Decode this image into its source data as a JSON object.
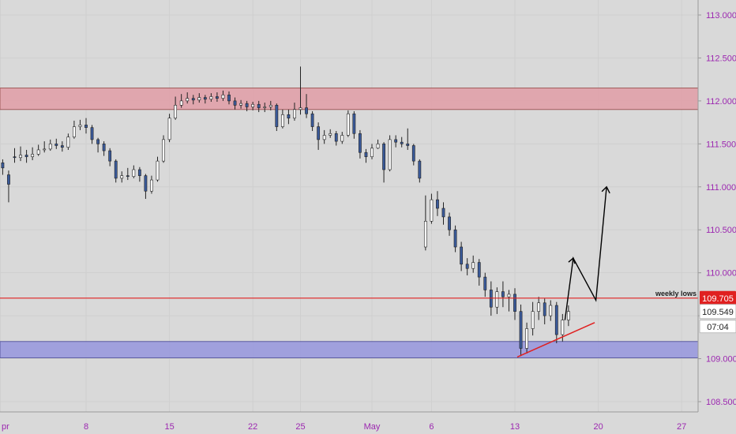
{
  "chart_data": {
    "type": "candlestick",
    "y_axis": {
      "ticks": [
        "113.000",
        "112.500",
        "112.000",
        "111.500",
        "111.000",
        "110.500",
        "110.000",
        "109.500",
        "109.000",
        "108.500"
      ],
      "tick_values": [
        113.0,
        112.5,
        112.0,
        111.5,
        111.0,
        110.5,
        110.0,
        109.5,
        109.0,
        108.5
      ],
      "range": [
        108.3,
        113.2
      ],
      "position": "right"
    },
    "x_axis": {
      "labels": [
        "pr",
        "8",
        "15",
        "22",
        "25",
        "May",
        "6",
        "13",
        "20",
        "27"
      ],
      "index": [
        -0.2,
        7,
        14,
        21,
        25,
        31,
        36,
        43,
        50,
        57
      ],
      "range": [
        0,
        60
      ]
    },
    "zones": [
      {
        "name": "resistance-zone",
        "low": 111.9,
        "high": 112.15,
        "color": "#e0a0a8",
        "border": "#a05a5a"
      },
      {
        "name": "support-zone",
        "low": 109.01,
        "high": 109.2,
        "color": "#9999dd",
        "border": "#5a5aa0"
      }
    ],
    "lines": [
      {
        "name": "weekly-lows",
        "value": 109.705,
        "label": "weekly lows",
        "color": "#e02020"
      }
    ],
    "price_tags": [
      {
        "name": "weekly-lows-tag",
        "text": "109.705",
        "bg": "#e02020",
        "fg": "#ffffff",
        "value": 109.705
      },
      {
        "name": "current-price-tag",
        "text": "109.549",
        "bg": "#ffffff",
        "fg": "#222222",
        "value": 109.549
      },
      {
        "name": "countdown-tag",
        "text": "07:04",
        "bg": "#ffffff",
        "fg": "#222222",
        "value": 109.39
      }
    ],
    "trendline": {
      "from": {
        "x": 43.2,
        "y": 109.02
      },
      "to": {
        "x": 49.7,
        "y": 109.42
      },
      "color": "#e02020"
    },
    "projection": {
      "points": [
        [
          47.2,
          109.45
        ],
        [
          47.9,
          110.17
        ],
        [
          49.8,
          109.68
        ],
        [
          50.7,
          111.0
        ]
      ],
      "color": "#000000"
    },
    "candles": [
      [
        0,
        111.28,
        111.22,
        111.32,
        111.14
      ],
      [
        0.5,
        111.14,
        111.03,
        111.19,
        110.82
      ],
      [
        1,
        111.35,
        111.34,
        111.45,
        111.28
      ],
      [
        1.5,
        111.34,
        111.37,
        111.47,
        111.3
      ],
      [
        2,
        111.37,
        111.35,
        111.43,
        111.28
      ],
      [
        2.5,
        111.35,
        111.38,
        111.46,
        111.31
      ],
      [
        3,
        111.38,
        111.43,
        111.49,
        111.36
      ],
      [
        3.5,
        111.43,
        111.44,
        111.53,
        111.4
      ],
      [
        4,
        111.44,
        111.5,
        111.55,
        111.42
      ],
      [
        4.5,
        111.5,
        111.48,
        111.56,
        111.44
      ],
      [
        5,
        111.48,
        111.46,
        111.53,
        111.41
      ],
      [
        5.5,
        111.46,
        111.58,
        111.62,
        111.43
      ],
      [
        6,
        111.58,
        111.7,
        111.77,
        111.56
      ],
      [
        6.5,
        111.7,
        111.72,
        111.78,
        111.66
      ],
      [
        7,
        111.72,
        111.69,
        111.8,
        111.62
      ],
      [
        7.5,
        111.69,
        111.55,
        111.72,
        111.5
      ],
      [
        8,
        111.55,
        111.5,
        111.57,
        111.4
      ],
      [
        8.5,
        111.5,
        111.42,
        111.53,
        111.36
      ],
      [
        9,
        111.42,
        111.3,
        111.45,
        111.24
      ],
      [
        9.5,
        111.3,
        111.1,
        111.32,
        111.05
      ],
      [
        10,
        111.1,
        111.13,
        111.18,
        111.05
      ],
      [
        10.5,
        111.13,
        111.12,
        111.22,
        111.08
      ],
      [
        11,
        111.12,
        111.2,
        111.25,
        111.1
      ],
      [
        11.5,
        111.2,
        111.13,
        111.23,
        111.06
      ],
      [
        12,
        111.13,
        110.95,
        111.15,
        110.86
      ],
      [
        12.5,
        110.95,
        111.08,
        111.13,
        110.92
      ],
      [
        13,
        111.08,
        111.3,
        111.35,
        111.06
      ],
      [
        13.5,
        111.3,
        111.55,
        111.6,
        111.28
      ],
      [
        14,
        111.55,
        111.8,
        111.85,
        111.52
      ],
      [
        14.5,
        111.8,
        111.95,
        112.05,
        111.78
      ],
      [
        15,
        111.95,
        112.0,
        112.08,
        111.92
      ],
      [
        15.5,
        112.0,
        112.03,
        112.1,
        111.97
      ],
      [
        16,
        112.03,
        112.01,
        112.07,
        111.96
      ],
      [
        16.5,
        112.01,
        112.04,
        112.09,
        111.98
      ],
      [
        17,
        112.04,
        112.02,
        112.07,
        111.97
      ],
      [
        17.5,
        112.02,
        112.05,
        112.09,
        111.99
      ],
      [
        18,
        112.05,
        112.03,
        112.1,
        111.99
      ],
      [
        18.5,
        112.03,
        112.07,
        112.12,
        112.0
      ],
      [
        19,
        112.07,
        112.0,
        112.11,
        111.96
      ],
      [
        19.5,
        112.0,
        111.95,
        112.04,
        111.9
      ],
      [
        20,
        111.95,
        111.97,
        112.01,
        111.91
      ],
      [
        20.5,
        111.97,
        111.93,
        112.0,
        111.88
      ],
      [
        21,
        111.93,
        111.96,
        111.99,
        111.89
      ],
      [
        21.5,
        111.96,
        111.92,
        112.0,
        111.87
      ],
      [
        22,
        111.92,
        111.93,
        111.98,
        111.87
      ],
      [
        22.5,
        111.93,
        111.95,
        112.0,
        111.89
      ],
      [
        23,
        111.95,
        111.7,
        111.97,
        111.65
      ],
      [
        23.5,
        111.7,
        111.84,
        111.9,
        111.68
      ],
      [
        24,
        111.84,
        111.8,
        111.9,
        111.73
      ],
      [
        24.5,
        111.8,
        111.9,
        111.98,
        111.77
      ],
      [
        25,
        111.9,
        111.92,
        112.4,
        111.84
      ],
      [
        25.5,
        111.92,
        111.85,
        112.08,
        111.8
      ],
      [
        26,
        111.85,
        111.7,
        111.88,
        111.65
      ],
      [
        26.5,
        111.7,
        111.55,
        111.75,
        111.43
      ],
      [
        27,
        111.55,
        111.6,
        111.66,
        111.5
      ],
      [
        27.5,
        111.6,
        111.62,
        111.67,
        111.57
      ],
      [
        28,
        111.62,
        111.53,
        111.65,
        111.48
      ],
      [
        28.5,
        111.53,
        111.6,
        111.64,
        111.5
      ],
      [
        29,
        111.6,
        111.85,
        111.89,
        111.58
      ],
      [
        29.5,
        111.85,
        111.62,
        111.88,
        111.56
      ],
      [
        30,
        111.62,
        111.4,
        111.66,
        111.33
      ],
      [
        30.5,
        111.4,
        111.35,
        111.44,
        111.28
      ],
      [
        31,
        111.35,
        111.45,
        111.5,
        111.32
      ],
      [
        31.5,
        111.45,
        111.5,
        111.55,
        111.44
      ],
      [
        32,
        111.5,
        111.2,
        111.52,
        111.05
      ],
      [
        32.5,
        111.2,
        111.55,
        111.6,
        111.18
      ],
      [
        33,
        111.55,
        111.52,
        111.6,
        111.46
      ],
      [
        33.5,
        111.52,
        111.5,
        111.58,
        111.46
      ],
      [
        34,
        111.5,
        111.48,
        111.68,
        111.43
      ],
      [
        34.5,
        111.48,
        111.3,
        111.5,
        111.25
      ],
      [
        35,
        111.3,
        111.1,
        111.32,
        111.05
      ],
      [
        35.5,
        110.3,
        110.6,
        110.9,
        110.26
      ],
      [
        36,
        110.6,
        110.85,
        110.92,
        110.57
      ],
      [
        36.5,
        110.85,
        110.75,
        110.95,
        110.66
      ],
      [
        37,
        110.75,
        110.65,
        110.82,
        110.56
      ],
      [
        37.5,
        110.65,
        110.5,
        110.7,
        110.43
      ],
      [
        38,
        110.5,
        110.3,
        110.55,
        110.24
      ],
      [
        38.5,
        110.3,
        110.1,
        110.36,
        110.02
      ],
      [
        39,
        110.1,
        110.05,
        110.17,
        109.97
      ],
      [
        39.5,
        110.05,
        110.12,
        110.2,
        110.0
      ],
      [
        40,
        110.12,
        109.95,
        110.16,
        109.85
      ],
      [
        40.5,
        109.95,
        109.8,
        110.0,
        109.72
      ],
      [
        41,
        109.8,
        109.6,
        109.9,
        109.5
      ],
      [
        41.5,
        109.6,
        109.78,
        109.83,
        109.52
      ],
      [
        42,
        109.78,
        109.72,
        109.9,
        109.6
      ],
      [
        42.5,
        109.72,
        109.75,
        109.8,
        109.55
      ],
      [
        43,
        109.75,
        109.55,
        109.82,
        109.45
      ],
      [
        43.5,
        109.55,
        109.12,
        109.63,
        109.03
      ],
      [
        44,
        109.12,
        109.35,
        109.42,
        109.06
      ],
      [
        44.5,
        109.35,
        109.55,
        109.66,
        109.27
      ],
      [
        45,
        109.55,
        109.65,
        109.72,
        109.45
      ],
      [
        45.5,
        109.65,
        109.5,
        109.7,
        109.4
      ],
      [
        46,
        109.5,
        109.62,
        109.68,
        109.44
      ],
      [
        46.5,
        109.62,
        109.28,
        109.66,
        109.18
      ],
      [
        47,
        109.28,
        109.45,
        109.52,
        109.2
      ],
      [
        47.5,
        109.45,
        109.55,
        109.62,
        109.38
      ]
    ]
  }
}
